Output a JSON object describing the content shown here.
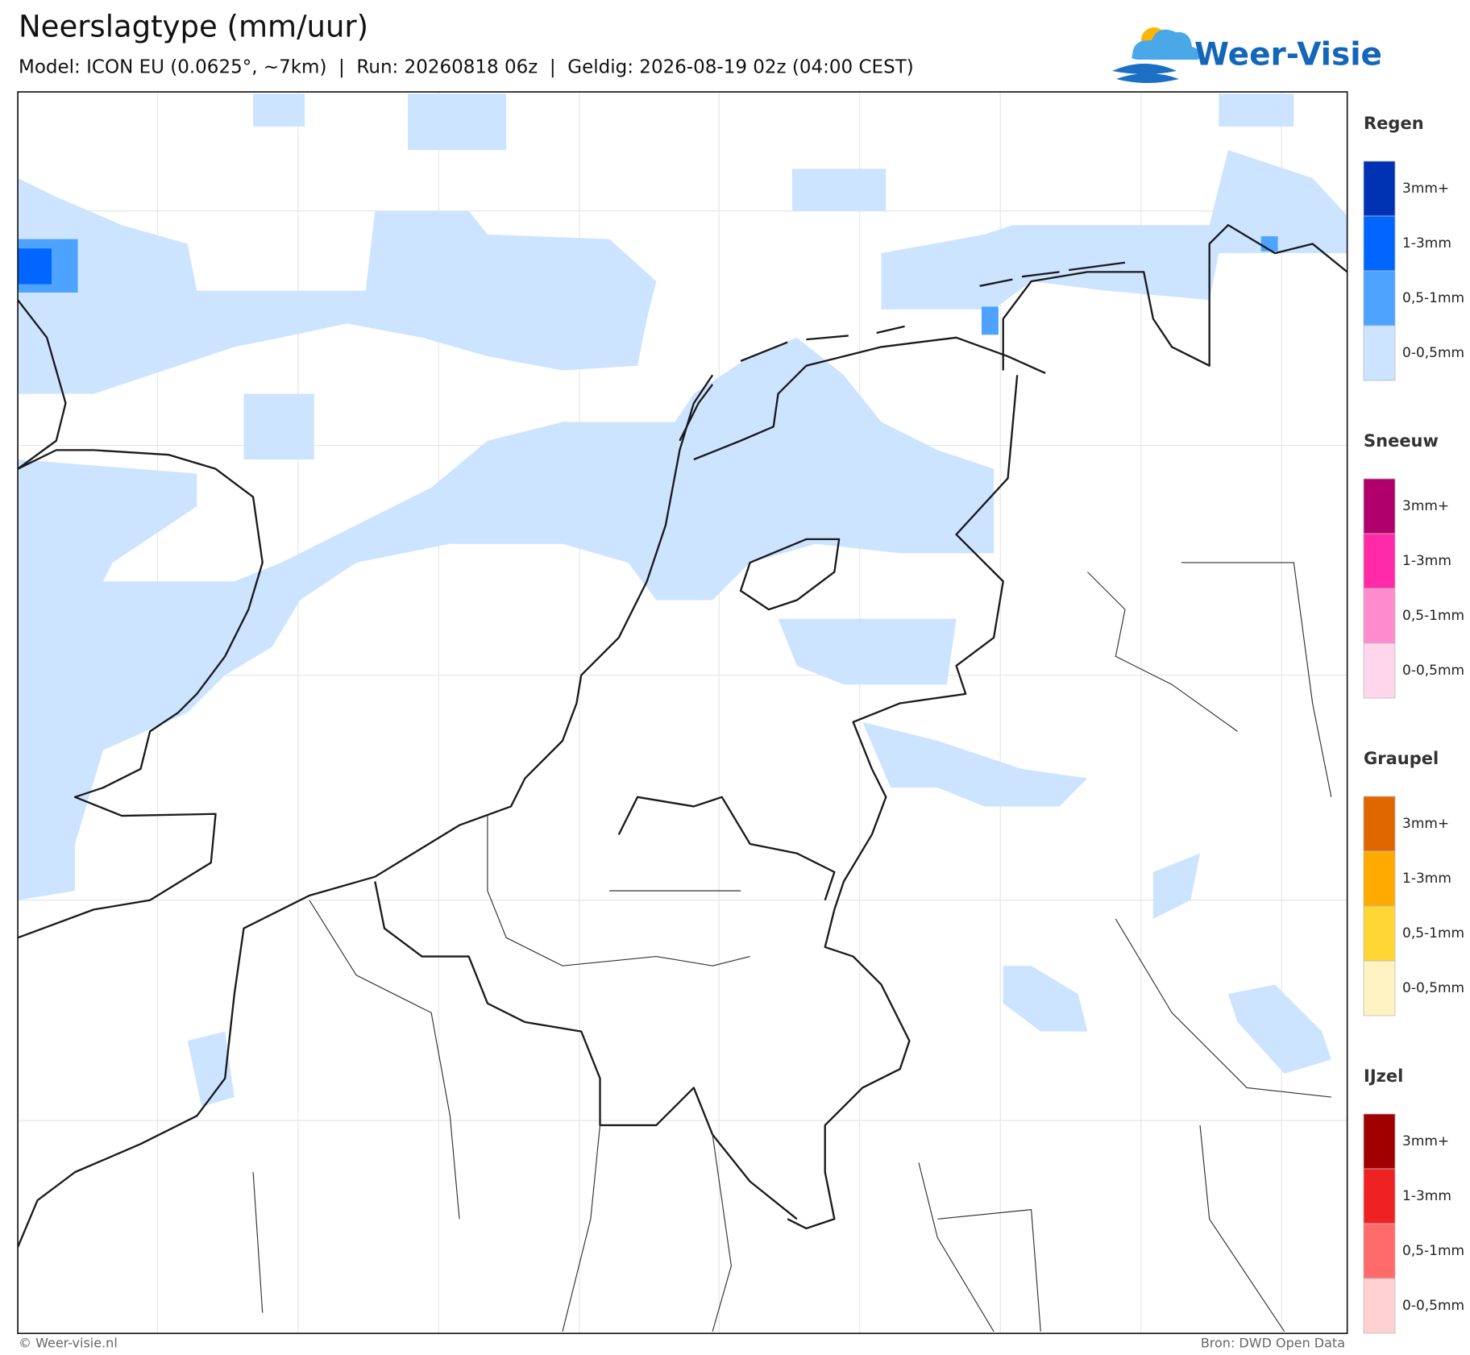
{
  "header": {
    "title": "Neerslagtype (mm/uur)",
    "subtitle": "Model: ICON EU (0.0625°, ~7km)  |  Run: 20260818 06z  |  Geldig: 2026-08-19 02z (04:00 CEST)",
    "logo": "Weer-Visie"
  },
  "legend": [
    {
      "title": "Regen",
      "items": [
        {
          "label": "3mm+",
          "color": "#0033b3"
        },
        {
          "label": "1-3mm",
          "color": "#0066ff"
        },
        {
          "label": "0,5-1mm",
          "color": "#4da3ff"
        },
        {
          "label": "0-0,5mm",
          "color": "#cce4ff"
        }
      ]
    },
    {
      "title": "Sneeuw",
      "items": [
        {
          "label": "3mm+",
          "color": "#b0006b"
        },
        {
          "label": "1-3mm",
          "color": "#ff2aa8"
        },
        {
          "label": "0,5-1mm",
          "color": "#ff8ccf"
        },
        {
          "label": "0-0,5mm",
          "color": "#ffd6ec"
        }
      ]
    },
    {
      "title": "Graupel",
      "items": [
        {
          "label": "3mm+",
          "color": "#e06600"
        },
        {
          "label": "1-3mm",
          "color": "#ffaa00"
        },
        {
          "label": "0,5-1mm",
          "color": "#ffd633"
        },
        {
          "label": "0-0,5mm",
          "color": "#fff2c2"
        }
      ]
    },
    {
      "title": "IJzel",
      "items": [
        {
          "label": "3mm+",
          "color": "#a00000"
        },
        {
          "label": "1-3mm",
          "color": "#ee2222"
        },
        {
          "label": "0,5-1mm",
          "color": "#ff6b6b"
        },
        {
          "label": "0-0,5mm",
          "color": "#ffd0d0"
        }
      ]
    }
  ],
  "footer": {
    "credit": "© Weer-visie.nl",
    "source": "Bron: DWD Open Data"
  }
}
